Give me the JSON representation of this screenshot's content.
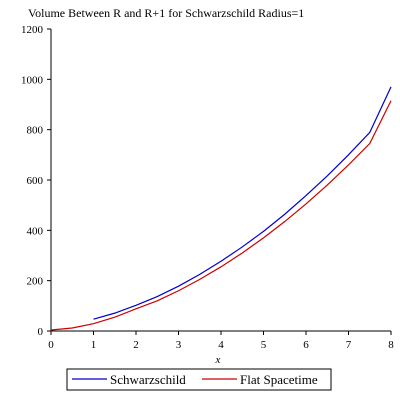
{
  "chart_data": {
    "type": "line",
    "title": "Volume Between R and R+1 for Schwarzschild Radius=1",
    "xlabel": "x",
    "ylabel": "",
    "xlim": [
      0,
      8
    ],
    "ylim": [
      0,
      1200
    ],
    "x_ticks": [
      "0",
      "1",
      "2",
      "3",
      "4",
      "5",
      "6",
      "7",
      "8"
    ],
    "y_ticks": [
      "0",
      "200",
      "400",
      "600",
      "800",
      "1000",
      "1200"
    ],
    "grid": false,
    "legend_position": "bottom",
    "series": [
      {
        "name": "Schwarzschild",
        "color": "#0000cc",
        "x": [
          1,
          1.5,
          2,
          2.5,
          3,
          3.5,
          4,
          4.5,
          5,
          5.5,
          6,
          6.5,
          7,
          7.5,
          8
        ],
        "y": [
          47,
          71,
          102,
          137,
          178,
          225,
          277,
          334,
          396,
          464,
          538,
          616,
          700,
          789,
          970
        ]
      },
      {
        "name": "Flat Spacetime",
        "color": "#cc0000",
        "x": [
          0,
          0.5,
          1,
          1.5,
          2,
          2.5,
          3,
          3.5,
          4,
          4.5,
          5,
          5.5,
          6,
          6.5,
          7,
          7.5,
          8
        ],
        "y": [
          4,
          12,
          29,
          55,
          88,
          120,
          160,
          205,
          255,
          310,
          370,
          435,
          505,
          580,
          660,
          745,
          915
        ]
      }
    ]
  }
}
